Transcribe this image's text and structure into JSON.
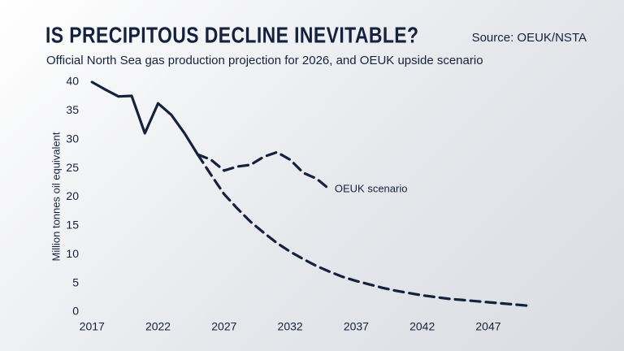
{
  "chart_data": {
    "type": "line",
    "title": "IS PRECIPITOUS DECLINE INEVITABLE?",
    "source": "Source: OEUK/NSTA",
    "subtitle": "Official North Sea gas production projection for 2026, and OEUK upside scenario",
    "y_label": "Million tonnes oil equivalent",
    "x": [
      2017,
      2018,
      2019,
      2020,
      2021,
      2022,
      2023,
      2024,
      2025,
      2026,
      2027,
      2028,
      2029,
      2030,
      2031,
      2032,
      2033,
      2034,
      2035,
      2036,
      2037,
      2038,
      2039,
      2040,
      2041,
      2042,
      2043,
      2044,
      2045,
      2046,
      2047,
      2048,
      2049,
      2050
    ],
    "series": [
      {
        "color": "#14223e",
        "dashed": false,
        "values": [
          40,
          38.7,
          37.5,
          37.6,
          31.1,
          36.3,
          34.3,
          31.1,
          27.4,
          null,
          null,
          null,
          null,
          null,
          null,
          null,
          null,
          null,
          null,
          null,
          null,
          null,
          null,
          null,
          null,
          null,
          null,
          null,
          null,
          null,
          null,
          null,
          null,
          null
        ]
      },
      {
        "color": "#14223e",
        "dashed": true,
        "values": [
          null,
          null,
          null,
          null,
          null,
          null,
          null,
          null,
          27.4,
          23.9,
          20.5,
          18,
          15.7,
          13.8,
          12,
          10.5,
          9.2,
          8,
          7,
          6.1,
          5.4,
          4.8,
          4.2,
          3.7,
          3.3,
          2.9,
          2.6,
          2.3,
          2.1,
          1.9,
          1.7,
          1.5,
          1.3,
          1.1
        ]
      },
      {
        "name": "OEUK scenario",
        "color": "#14223e",
        "dashed": true,
        "values": [
          null,
          null,
          null,
          null,
          null,
          null,
          null,
          null,
          27.4,
          26.5,
          24.6,
          25.3,
          25.6,
          27,
          27.8,
          26.5,
          24.2,
          23.2,
          21.3,
          null,
          null,
          null,
          null,
          null,
          null,
          null,
          null,
          null,
          null,
          null,
          null,
          null,
          null,
          null
        ]
      }
    ],
    "xlim": [
      2016,
      2051
    ],
    "xticks": [
      2017,
      2022,
      2027,
      2032,
      2037,
      2042,
      2047
    ],
    "ylim": [
      0,
      40
    ],
    "yticks": [
      0,
      5,
      10,
      15,
      20,
      25,
      30,
      35,
      40
    ]
  }
}
